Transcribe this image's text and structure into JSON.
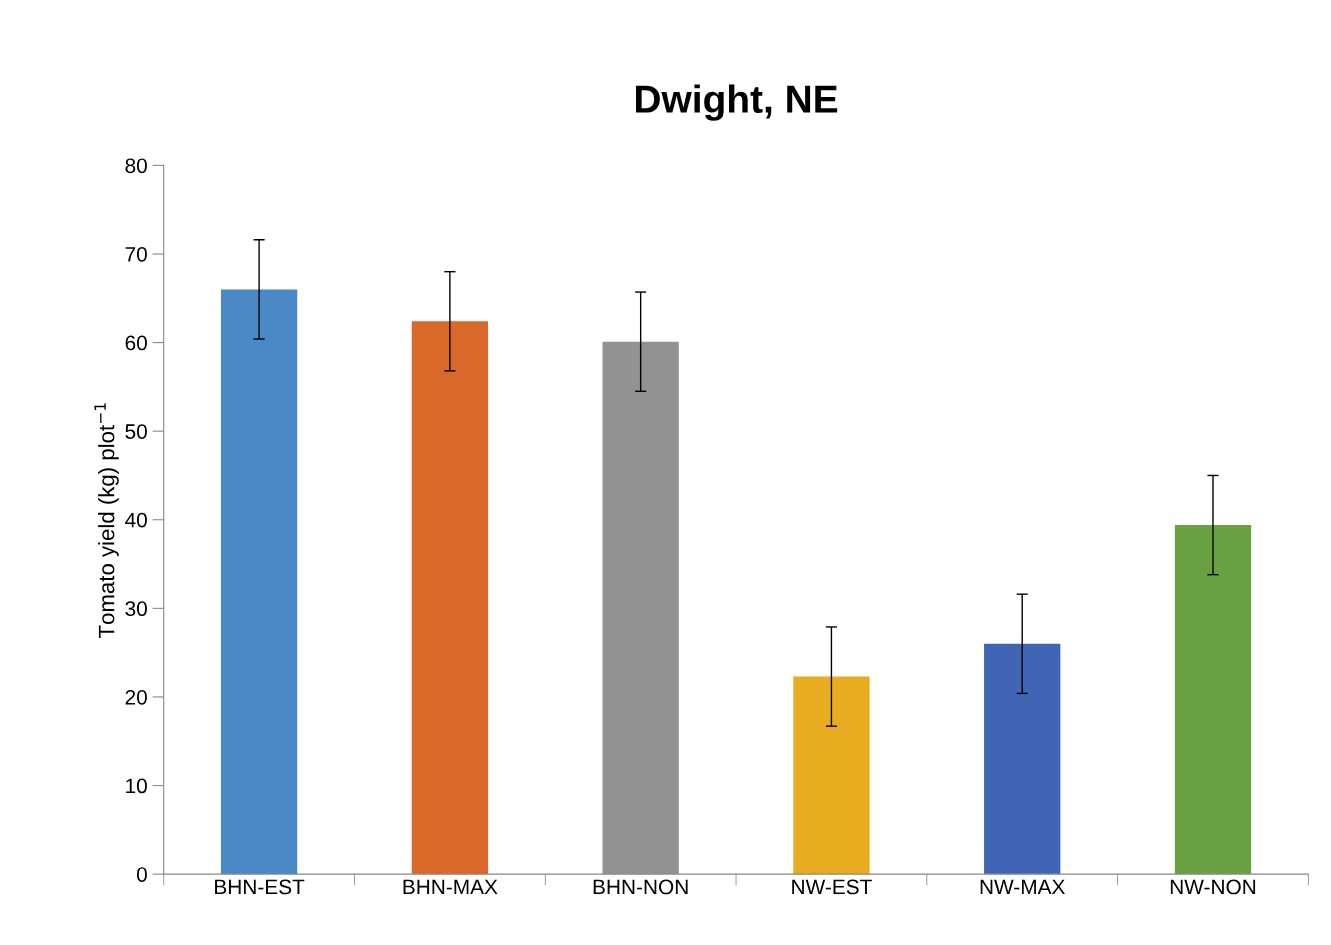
{
  "chart_data": {
    "type": "bar",
    "title": "Dwight, NE",
    "ylabel": "Tomato yield (kg) plot$^{−1}$",
    "categories": [
      "BHN-EST",
      "BHN-MAX",
      "BHN-NON",
      "NW-EST",
      "NW-MAX",
      "NW-NON"
    ],
    "values": [
      66,
      62.4,
      60.1,
      22.3,
      26.0,
      39.4
    ],
    "errors": [
      5.6,
      5.6,
      5.6,
      5.6,
      5.6,
      5.6
    ],
    "colors": [
      "#4a89c5",
      "#d9682a",
      "#929292",
      "#e8ac20",
      "#3f65b4",
      "#6aa243"
    ],
    "ylim": [
      0,
      80
    ],
    "yticks": [
      0,
      10,
      20,
      30,
      40,
      50,
      60,
      70,
      80
    ],
    "grid": false,
    "legend": false
  }
}
